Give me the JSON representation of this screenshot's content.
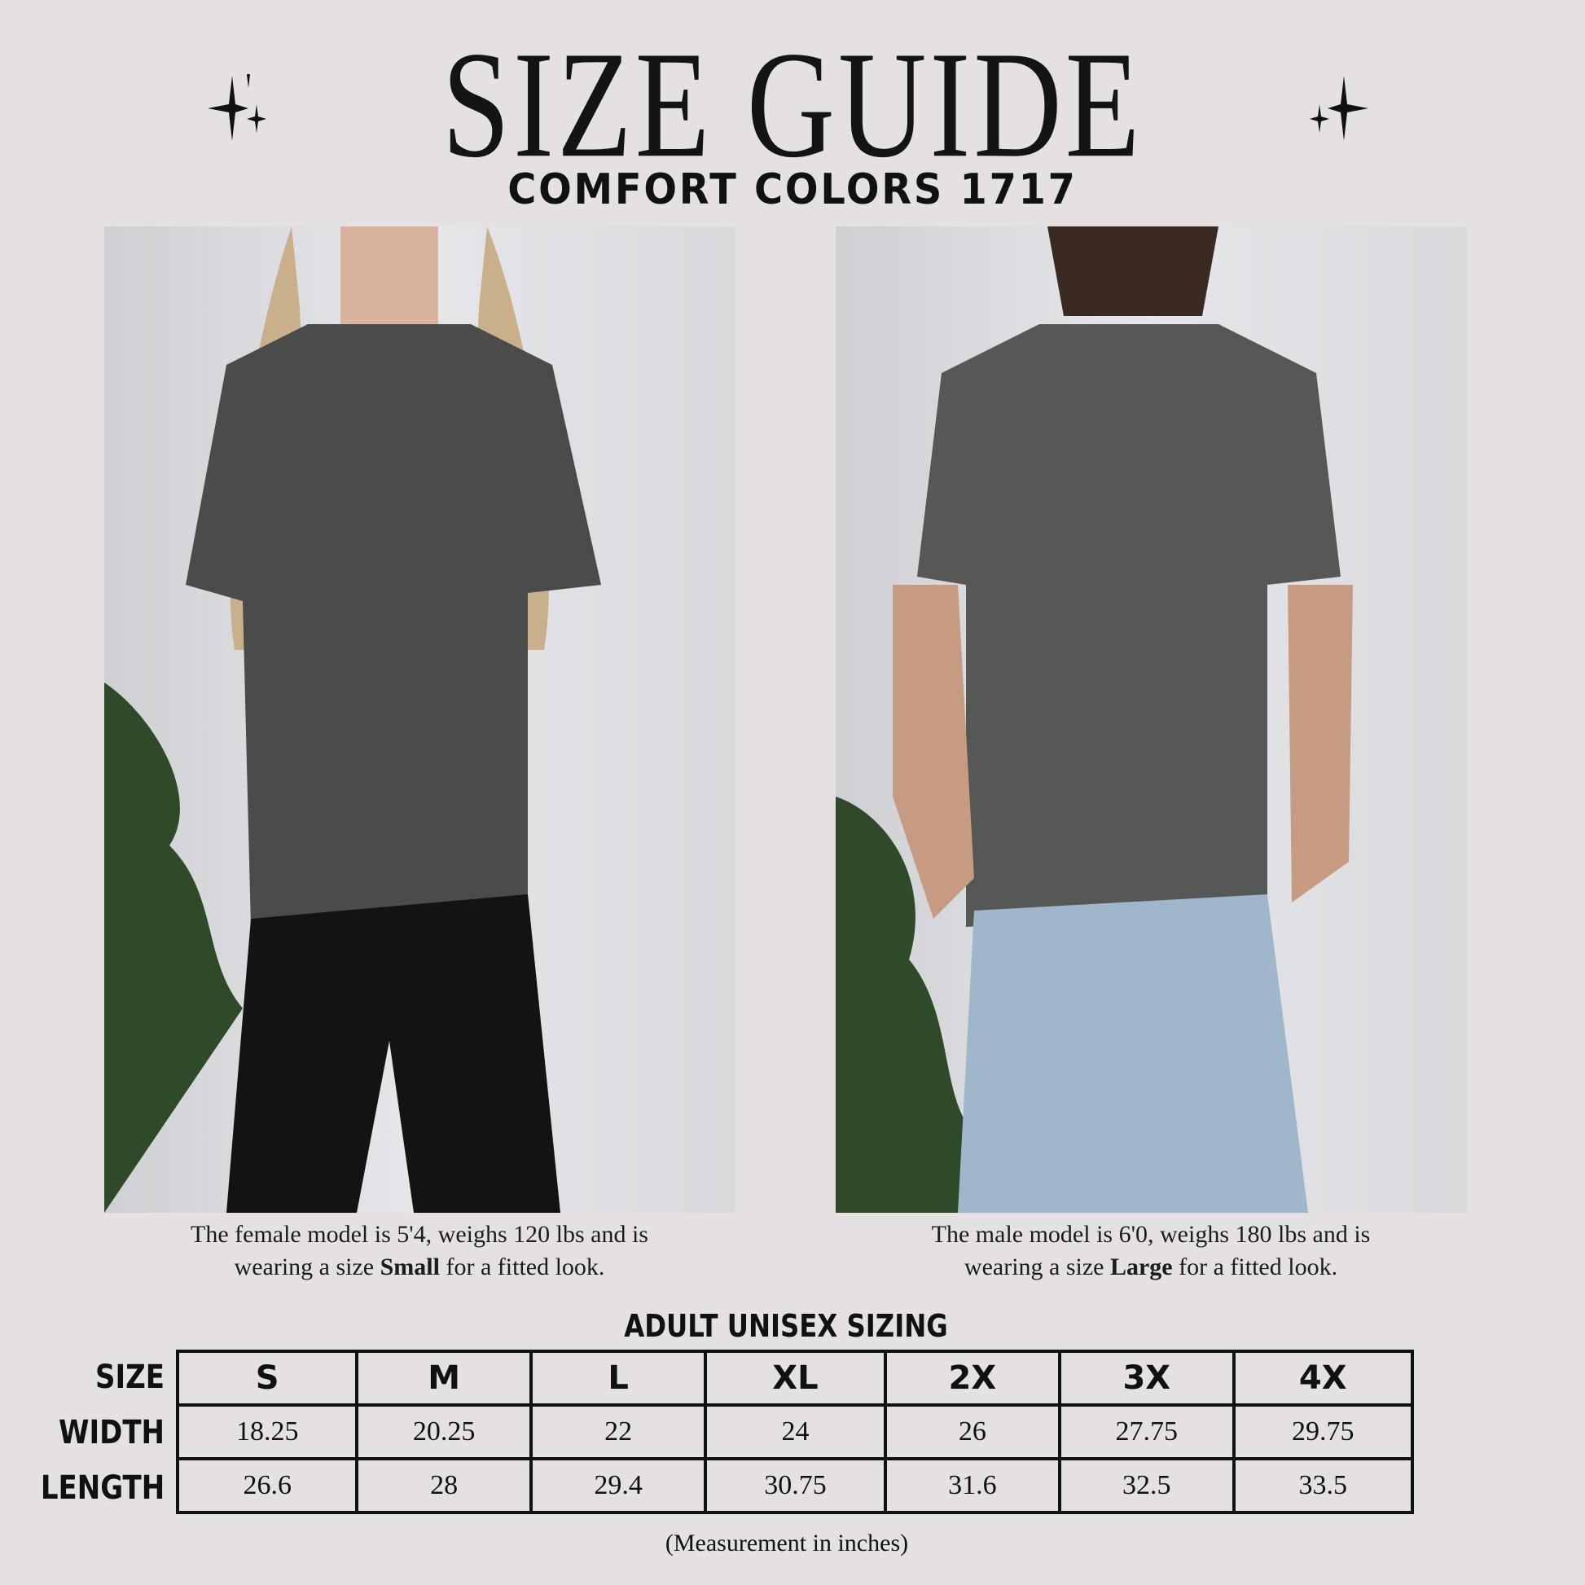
{
  "header": {
    "title": "SIZE GUIDE",
    "subtitle": "COMFORT COLORS 1717",
    "decoration_icon": "sparkle-icon"
  },
  "photos": {
    "female": {
      "alt_subject": "female model in dark gray t-shirt",
      "shirt_color": "#4a4b4b"
    },
    "male": {
      "alt_subject": "male model in dark gray t-shirt",
      "shirt_color": "#565856"
    }
  },
  "captions": {
    "female": {
      "line1": "The female model is 5'4, weighs 120 lbs and is",
      "prefix": "wearing a size ",
      "size": "Small",
      "suffix": " for a fitted look."
    },
    "male": {
      "line1": "The male model is 6'0, weighs 180 lbs and is",
      "prefix": "wearing a size ",
      "size": "Large",
      "suffix": " for a fitted look."
    }
  },
  "sizing": {
    "title": "ADULT UNISEX SIZING",
    "row_labels": [
      "SIZE",
      "WIDTH",
      "LENGTH"
    ],
    "sizes": [
      "S",
      "M",
      "L",
      "XL",
      "2X",
      "3X",
      "4X"
    ],
    "width": [
      "18.25",
      "20.25",
      "22",
      "24",
      "26",
      "27.75",
      "29.75"
    ],
    "length": [
      "26.6",
      "28",
      "29.4",
      "30.75",
      "31.6",
      "32.5",
      "33.5"
    ],
    "note": "(Measurement in inches)"
  }
}
